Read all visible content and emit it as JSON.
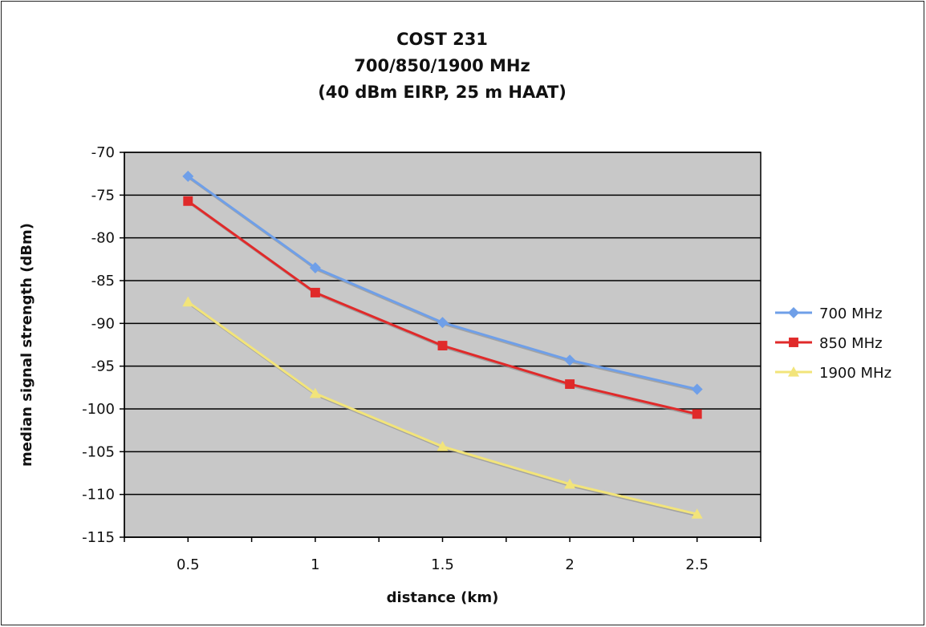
{
  "chart_data": {
    "type": "line",
    "title_lines": [
      "COST 231",
      "700/850/1900 MHz",
      "(40 dBm EIRP, 25 m HAAT)"
    ],
    "xlabel": "distance (km)",
    "ylabel": "median signal strength (dBm)",
    "x": [
      0.5,
      1,
      1.5,
      2,
      2.5
    ],
    "x_tick_labels": [
      "0.5",
      "1",
      "1.5",
      "2",
      "2.5"
    ],
    "ylim": [
      -115,
      -70
    ],
    "y_ticks": [
      -70,
      -75,
      -80,
      -85,
      -90,
      -95,
      -100,
      -105,
      -110,
      -115
    ],
    "y_tick_labels": [
      "-70",
      "-75",
      "-80",
      "-85",
      "-90",
      "-95",
      "-100",
      "-105",
      "-110",
      "-115"
    ],
    "grid": "horizontal",
    "legend_position": "right",
    "plot_background": "#c8c8c8",
    "series": [
      {
        "name": "700 MHz",
        "values": [
          -72.8,
          -83.5,
          -89.9,
          -94.3,
          -97.7
        ],
        "color": "#6f9fe8",
        "marker": "diamond"
      },
      {
        "name": "850 MHz",
        "values": [
          -75.7,
          -86.4,
          -92.6,
          -97.1,
          -100.6
        ],
        "color": "#e02a2a",
        "marker": "square"
      },
      {
        "name": "1900 MHz",
        "values": [
          -87.5,
          -98.2,
          -104.4,
          -108.8,
          -112.3
        ],
        "color": "#f2e47a",
        "marker": "triangle"
      }
    ]
  }
}
